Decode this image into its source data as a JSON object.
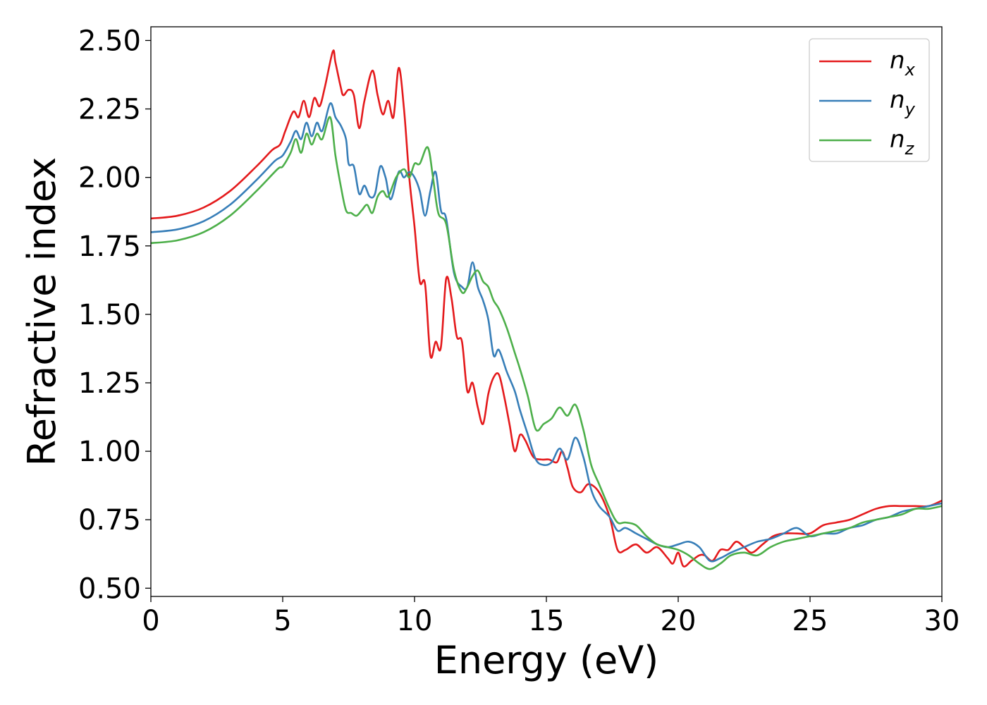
{
  "chart_data": {
    "type": "line",
    "xlabel": "Energy (eV)",
    "ylabel": "Refractive index",
    "xlim": [
      0,
      30
    ],
    "ylim": [
      0.47,
      2.55
    ],
    "xticks": [
      0,
      5,
      10,
      15,
      20,
      25,
      30
    ],
    "xtick_labels": [
      "0",
      "5",
      "10",
      "15",
      "20",
      "25",
      "30"
    ],
    "yticks": [
      0.5,
      0.75,
      1.0,
      1.25,
      1.5,
      1.75,
      2.0,
      2.25,
      2.5
    ],
    "ytick_labels": [
      "0.50",
      "0.75",
      "1.00",
      "1.25",
      "1.50",
      "1.75",
      "2.00",
      "2.25",
      "2.50"
    ],
    "grid": false,
    "legend_position": "top-right",
    "series": [
      {
        "name": "n",
        "subscript": "x",
        "color": "#e41a1c",
        "points": [
          [
            0,
            1.85
          ],
          [
            1,
            1.86
          ],
          [
            2,
            1.89
          ],
          [
            3,
            1.95
          ],
          [
            4,
            2.04
          ],
          [
            4.6,
            2.1
          ],
          [
            4.9,
            2.12
          ],
          [
            5.1,
            2.17
          ],
          [
            5.4,
            2.24
          ],
          [
            5.6,
            2.22
          ],
          [
            5.8,
            2.28
          ],
          [
            6.0,
            2.22
          ],
          [
            6.2,
            2.29
          ],
          [
            6.4,
            2.26
          ],
          [
            6.6,
            2.33
          ],
          [
            6.9,
            2.46
          ],
          [
            7.0,
            2.42
          ],
          [
            7.2,
            2.33
          ],
          [
            7.3,
            2.3
          ],
          [
            7.5,
            2.32
          ],
          [
            7.7,
            2.3
          ],
          [
            7.9,
            2.18
          ],
          [
            8.1,
            2.28
          ],
          [
            8.4,
            2.39
          ],
          [
            8.6,
            2.3
          ],
          [
            8.8,
            2.23
          ],
          [
            9.0,
            2.28
          ],
          [
            9.2,
            2.22
          ],
          [
            9.4,
            2.4
          ],
          [
            9.6,
            2.25
          ],
          [
            9.8,
            2.0
          ],
          [
            10.0,
            1.82
          ],
          [
            10.2,
            1.62
          ],
          [
            10.4,
            1.61
          ],
          [
            10.6,
            1.35
          ],
          [
            10.8,
            1.4
          ],
          [
            11.0,
            1.38
          ],
          [
            11.2,
            1.63
          ],
          [
            11.4,
            1.56
          ],
          [
            11.6,
            1.42
          ],
          [
            11.8,
            1.4
          ],
          [
            12.0,
            1.22
          ],
          [
            12.2,
            1.25
          ],
          [
            12.4,
            1.16
          ],
          [
            12.6,
            1.1
          ],
          [
            12.8,
            1.21
          ],
          [
            13.0,
            1.27
          ],
          [
            13.2,
            1.28
          ],
          [
            13.4,
            1.2
          ],
          [
            13.6,
            1.1
          ],
          [
            13.8,
            1.0
          ],
          [
            14.0,
            1.06
          ],
          [
            14.2,
            1.04
          ],
          [
            14.5,
            0.98
          ],
          [
            14.8,
            0.97
          ],
          [
            15.1,
            0.97
          ],
          [
            15.4,
            0.96
          ],
          [
            15.6,
            1.0
          ],
          [
            15.8,
            0.94
          ],
          [
            16.0,
            0.87
          ],
          [
            16.3,
            0.85
          ],
          [
            16.6,
            0.88
          ],
          [
            17.0,
            0.85
          ],
          [
            17.4,
            0.76
          ],
          [
            17.7,
            0.64
          ],
          [
            18.0,
            0.64
          ],
          [
            18.4,
            0.66
          ],
          [
            18.8,
            0.63
          ],
          [
            19.2,
            0.65
          ],
          [
            19.6,
            0.61
          ],
          [
            19.8,
            0.59
          ],
          [
            20.0,
            0.63
          ],
          [
            20.2,
            0.58
          ],
          [
            20.5,
            0.6
          ],
          [
            20.8,
            0.62
          ],
          [
            21.0,
            0.62
          ],
          [
            21.3,
            0.6
          ],
          [
            21.6,
            0.64
          ],
          [
            21.9,
            0.64
          ],
          [
            22.2,
            0.67
          ],
          [
            22.5,
            0.65
          ],
          [
            22.8,
            0.63
          ],
          [
            23.2,
            0.66
          ],
          [
            23.6,
            0.69
          ],
          [
            24.0,
            0.7
          ],
          [
            24.5,
            0.7
          ],
          [
            25.0,
            0.7
          ],
          [
            25.5,
            0.73
          ],
          [
            26.0,
            0.74
          ],
          [
            26.5,
            0.75
          ],
          [
            27.0,
            0.77
          ],
          [
            27.5,
            0.79
          ],
          [
            28.0,
            0.8
          ],
          [
            28.5,
            0.8
          ],
          [
            29.0,
            0.8
          ],
          [
            29.5,
            0.8
          ],
          [
            30,
            0.82
          ]
        ]
      },
      {
        "name": "n",
        "subscript": "y",
        "color": "#377eb8",
        "points": [
          [
            0,
            1.8
          ],
          [
            1,
            1.81
          ],
          [
            2,
            1.84
          ],
          [
            3,
            1.9
          ],
          [
            4,
            1.99
          ],
          [
            4.7,
            2.06
          ],
          [
            5.0,
            2.08
          ],
          [
            5.3,
            2.13
          ],
          [
            5.5,
            2.17
          ],
          [
            5.7,
            2.14
          ],
          [
            5.9,
            2.2
          ],
          [
            6.1,
            2.15
          ],
          [
            6.3,
            2.2
          ],
          [
            6.5,
            2.17
          ],
          [
            6.8,
            2.27
          ],
          [
            7.0,
            2.22
          ],
          [
            7.2,
            2.19
          ],
          [
            7.4,
            2.14
          ],
          [
            7.5,
            2.05
          ],
          [
            7.7,
            2.04
          ],
          [
            7.9,
            1.94
          ],
          [
            8.1,
            1.97
          ],
          [
            8.3,
            1.93
          ],
          [
            8.5,
            1.94
          ],
          [
            8.7,
            2.04
          ],
          [
            8.9,
            2.0
          ],
          [
            9.1,
            1.92
          ],
          [
            9.4,
            2.02
          ],
          [
            9.6,
            2.0
          ],
          [
            9.8,
            2.02
          ],
          [
            10.0,
            2.0
          ],
          [
            10.2,
            1.95
          ],
          [
            10.4,
            1.86
          ],
          [
            10.6,
            1.95
          ],
          [
            10.8,
            2.02
          ],
          [
            11.0,
            1.88
          ],
          [
            11.2,
            1.85
          ],
          [
            11.5,
            1.65
          ],
          [
            11.8,
            1.6
          ],
          [
            12.0,
            1.6
          ],
          [
            12.2,
            1.69
          ],
          [
            12.4,
            1.6
          ],
          [
            12.6,
            1.55
          ],
          [
            12.8,
            1.48
          ],
          [
            13.0,
            1.35
          ],
          [
            13.2,
            1.37
          ],
          [
            13.5,
            1.29
          ],
          [
            13.8,
            1.22
          ],
          [
            14.0,
            1.15
          ],
          [
            14.3,
            1.06
          ],
          [
            14.6,
            0.97
          ],
          [
            14.9,
            0.95
          ],
          [
            15.2,
            0.96
          ],
          [
            15.5,
            1.01
          ],
          [
            15.8,
            0.97
          ],
          [
            16.1,
            1.05
          ],
          [
            16.4,
            0.98
          ],
          [
            16.7,
            0.86
          ],
          [
            17.0,
            0.8
          ],
          [
            17.4,
            0.76
          ],
          [
            17.7,
            0.71
          ],
          [
            18.0,
            0.72
          ],
          [
            18.4,
            0.7
          ],
          [
            18.8,
            0.68
          ],
          [
            19.2,
            0.66
          ],
          [
            19.6,
            0.65
          ],
          [
            20.0,
            0.66
          ],
          [
            20.4,
            0.67
          ],
          [
            20.8,
            0.65
          ],
          [
            21.2,
            0.6
          ],
          [
            21.6,
            0.61
          ],
          [
            22.0,
            0.63
          ],
          [
            22.5,
            0.65
          ],
          [
            23.0,
            0.67
          ],
          [
            23.5,
            0.68
          ],
          [
            24.0,
            0.7
          ],
          [
            24.5,
            0.72
          ],
          [
            25.0,
            0.69
          ],
          [
            25.5,
            0.7
          ],
          [
            26.0,
            0.7
          ],
          [
            26.5,
            0.72
          ],
          [
            27.0,
            0.73
          ],
          [
            27.5,
            0.75
          ],
          [
            28.0,
            0.76
          ],
          [
            28.5,
            0.78
          ],
          [
            29.0,
            0.79
          ],
          [
            29.5,
            0.8
          ],
          [
            30,
            0.81
          ]
        ]
      },
      {
        "name": "n",
        "subscript": "z",
        "color": "#4daf4a",
        "points": [
          [
            0,
            1.76
          ],
          [
            1,
            1.77
          ],
          [
            2,
            1.8
          ],
          [
            3,
            1.86
          ],
          [
            4,
            1.95
          ],
          [
            4.8,
            2.03
          ],
          [
            5.0,
            2.04
          ],
          [
            5.3,
            2.09
          ],
          [
            5.5,
            2.14
          ],
          [
            5.7,
            2.09
          ],
          [
            5.9,
            2.16
          ],
          [
            6.1,
            2.12
          ],
          [
            6.3,
            2.16
          ],
          [
            6.5,
            2.14
          ],
          [
            6.8,
            2.22
          ],
          [
            7.0,
            2.08
          ],
          [
            7.2,
            1.97
          ],
          [
            7.4,
            1.88
          ],
          [
            7.6,
            1.87
          ],
          [
            7.8,
            1.86
          ],
          [
            8.0,
            1.88
          ],
          [
            8.2,
            1.9
          ],
          [
            8.4,
            1.87
          ],
          [
            8.6,
            1.93
          ],
          [
            8.8,
            1.95
          ],
          [
            9.0,
            1.93
          ],
          [
            9.3,
            2.0
          ],
          [
            9.6,
            2.03
          ],
          [
            9.8,
            2.0
          ],
          [
            10.0,
            2.05
          ],
          [
            10.2,
            2.05
          ],
          [
            10.5,
            2.11
          ],
          [
            10.7,
            2.0
          ],
          [
            10.9,
            1.87
          ],
          [
            11.2,
            1.83
          ],
          [
            11.5,
            1.66
          ],
          [
            11.8,
            1.58
          ],
          [
            12.0,
            1.6
          ],
          [
            12.2,
            1.64
          ],
          [
            12.4,
            1.66
          ],
          [
            12.6,
            1.62
          ],
          [
            12.8,
            1.6
          ],
          [
            13.0,
            1.55
          ],
          [
            13.2,
            1.52
          ],
          [
            13.5,
            1.45
          ],
          [
            13.8,
            1.36
          ],
          [
            14.0,
            1.3
          ],
          [
            14.3,
            1.2
          ],
          [
            14.6,
            1.08
          ],
          [
            14.9,
            1.1
          ],
          [
            15.2,
            1.12
          ],
          [
            15.5,
            1.16
          ],
          [
            15.8,
            1.13
          ],
          [
            16.1,
            1.17
          ],
          [
            16.4,
            1.08
          ],
          [
            16.7,
            0.95
          ],
          [
            17.0,
            0.88
          ],
          [
            17.4,
            0.79
          ],
          [
            17.7,
            0.74
          ],
          [
            18.0,
            0.74
          ],
          [
            18.4,
            0.73
          ],
          [
            18.8,
            0.69
          ],
          [
            19.2,
            0.66
          ],
          [
            19.6,
            0.65
          ],
          [
            20.0,
            0.64
          ],
          [
            20.4,
            0.62
          ],
          [
            20.8,
            0.59
          ],
          [
            21.2,
            0.57
          ],
          [
            21.6,
            0.59
          ],
          [
            22.0,
            0.62
          ],
          [
            22.5,
            0.63
          ],
          [
            23.0,
            0.62
          ],
          [
            23.5,
            0.65
          ],
          [
            24.0,
            0.67
          ],
          [
            24.5,
            0.68
          ],
          [
            25.0,
            0.69
          ],
          [
            25.5,
            0.7
          ],
          [
            26.0,
            0.71
          ],
          [
            26.5,
            0.72
          ],
          [
            27.0,
            0.74
          ],
          [
            27.5,
            0.75
          ],
          [
            28.0,
            0.76
          ],
          [
            28.5,
            0.77
          ],
          [
            29.0,
            0.79
          ],
          [
            29.5,
            0.79
          ],
          [
            30,
            0.8
          ]
        ]
      }
    ]
  }
}
